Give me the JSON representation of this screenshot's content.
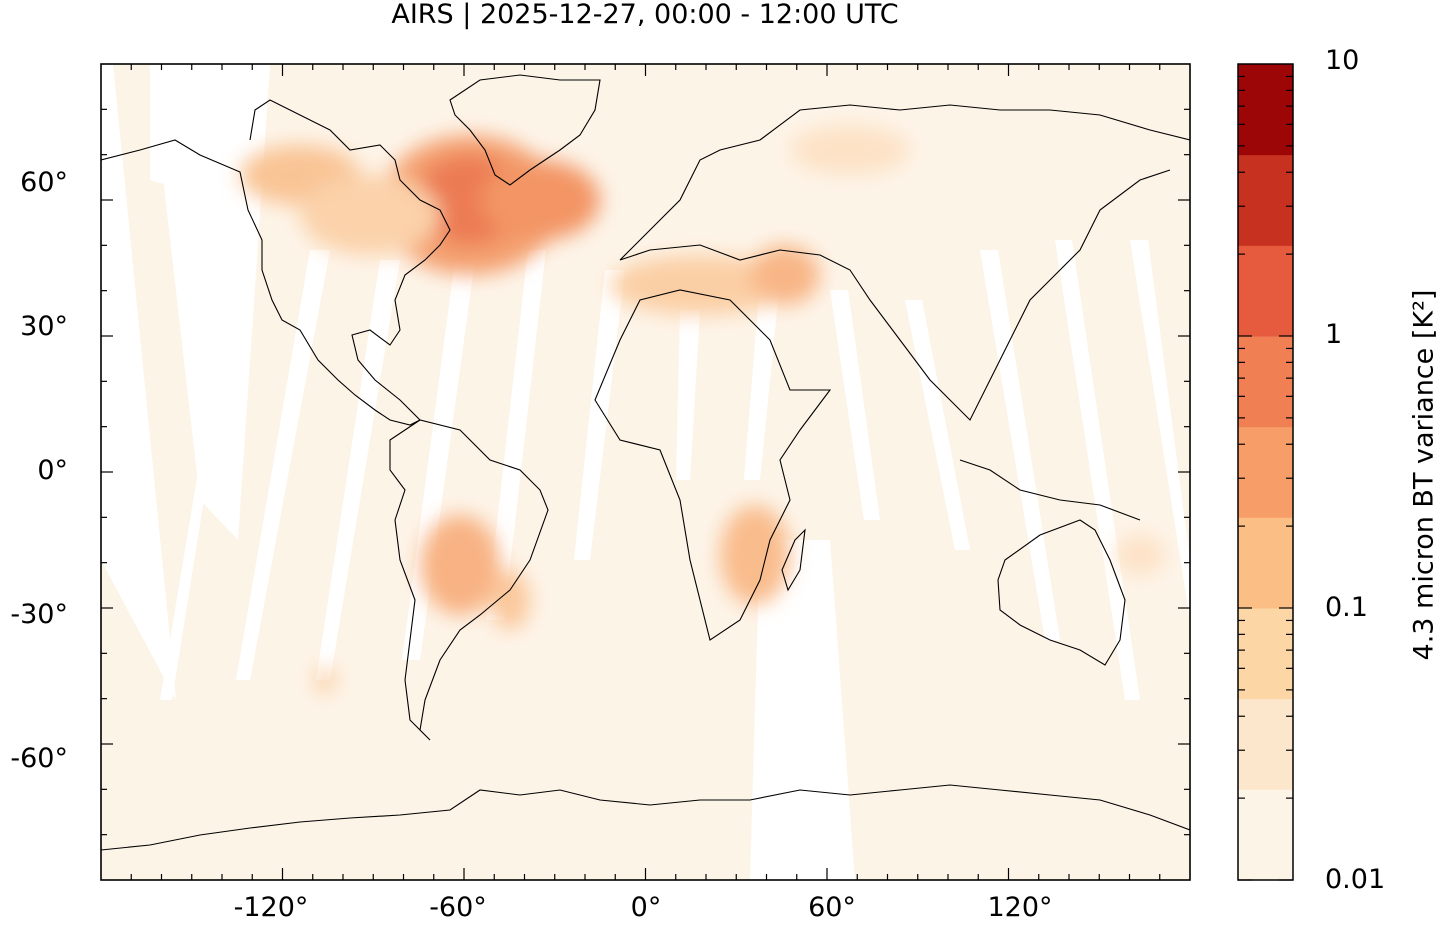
{
  "title": "AIRS | 2025-12-27, 00:00 - 12:00 UTC",
  "map": {
    "projection": "equirectangular",
    "lon_range": [
      -180,
      180
    ],
    "lat_range": [
      -90,
      90
    ],
    "lat_ticks": [
      "60°",
      "30°",
      "0°",
      "-30°",
      "-60°"
    ],
    "lon_ticks": [
      "-120°",
      "-60°",
      "0°",
      "60°",
      "120°"
    ],
    "field": "4.3 micron BT variance",
    "background_color": "#fdf4e8",
    "swath_gaps_color": "#ffffff",
    "hotspots": [
      {
        "region": "North Atlantic / Labrador Sea",
        "level": "high",
        "color": "#e6673e"
      },
      {
        "region": "Canada / Hudson Bay",
        "level": "medium",
        "color": "#f6a372"
      },
      {
        "region": "Mediterranean / Black Sea",
        "level": "medium",
        "color": "#f6a372"
      },
      {
        "region": "South America (Brazil)",
        "level": "medium",
        "color": "#f6a372"
      },
      {
        "region": "Southeast Africa",
        "level": "medium",
        "color": "#f6a372"
      }
    ]
  },
  "colorbar": {
    "label": "4.3 micron BT variance [K²]",
    "scale": "log",
    "range": [
      0.01,
      10
    ],
    "tick_labels": [
      "10",
      "1",
      "0.1",
      "0.01"
    ],
    "colors": [
      "#fdf4e8",
      "#fde7cc",
      "#fcd6a5",
      "#fbbf85",
      "#f79e68",
      "#f07f53",
      "#e65a3e",
      "#c7311f",
      "#9c0607"
    ]
  }
}
